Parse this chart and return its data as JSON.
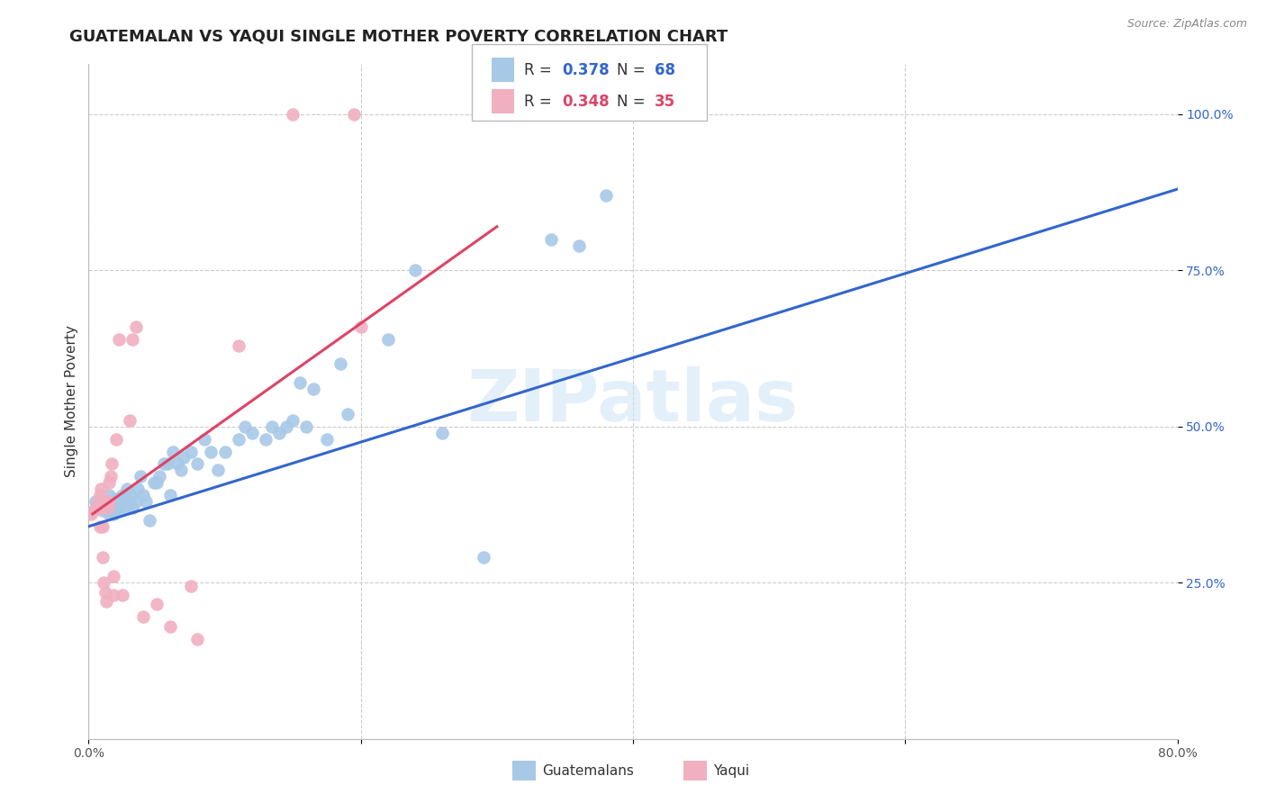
{
  "title": "GUATEMALAN VS YAQUI SINGLE MOTHER POVERTY CORRELATION CHART",
  "source": "Source: ZipAtlas.com",
  "ylabel": "Single Mother Poverty",
  "xlim": [
    0.0,
    0.8
  ],
  "ylim": [
    0.0,
    1.08
  ],
  "ytick_positions": [
    0.25,
    0.5,
    0.75,
    1.0
  ],
  "ytick_labels": [
    "25.0%",
    "50.0%",
    "75.0%",
    "100.0%"
  ],
  "background_color": "#ffffff",
  "grid_color": "#cccccc",
  "watermark": "ZIPatlas",
  "blue_R": 0.378,
  "blue_N": 68,
  "pink_R": 0.348,
  "pink_N": 35,
  "blue_color": "#a8c8e8",
  "pink_color": "#f0b0c0",
  "blue_line_color": "#3366cc",
  "pink_line_color": "#dd4466",
  "blue_scatter_x": [
    0.005,
    0.008,
    0.01,
    0.012,
    0.014,
    0.015,
    0.015,
    0.016,
    0.017,
    0.018,
    0.019,
    0.02,
    0.02,
    0.021,
    0.022,
    0.022,
    0.023,
    0.025,
    0.026,
    0.026,
    0.028,
    0.028,
    0.03,
    0.031,
    0.032,
    0.035,
    0.036,
    0.038,
    0.04,
    0.042,
    0.045,
    0.048,
    0.05,
    0.052,
    0.055,
    0.058,
    0.06,
    0.062,
    0.065,
    0.068,
    0.07,
    0.075,
    0.08,
    0.085,
    0.09,
    0.095,
    0.1,
    0.11,
    0.115,
    0.12,
    0.13,
    0.135,
    0.14,
    0.145,
    0.15,
    0.155,
    0.16,
    0.165,
    0.175,
    0.185,
    0.19,
    0.22,
    0.24,
    0.26,
    0.29,
    0.34,
    0.36,
    0.38
  ],
  "blue_scatter_y": [
    0.38,
    0.37,
    0.365,
    0.375,
    0.38,
    0.39,
    0.36,
    0.37,
    0.375,
    0.36,
    0.365,
    0.37,
    0.385,
    0.37,
    0.365,
    0.37,
    0.375,
    0.39,
    0.38,
    0.385,
    0.37,
    0.4,
    0.38,
    0.39,
    0.37,
    0.38,
    0.4,
    0.42,
    0.39,
    0.38,
    0.35,
    0.41,
    0.41,
    0.42,
    0.44,
    0.44,
    0.39,
    0.46,
    0.44,
    0.43,
    0.45,
    0.46,
    0.44,
    0.48,
    0.46,
    0.43,
    0.46,
    0.48,
    0.5,
    0.49,
    0.48,
    0.5,
    0.49,
    0.5,
    0.51,
    0.57,
    0.5,
    0.56,
    0.48,
    0.6,
    0.52,
    0.64,
    0.75,
    0.49,
    0.29,
    0.8,
    0.79,
    0.87
  ],
  "pink_scatter_x": [
    0.002,
    0.004,
    0.006,
    0.007,
    0.008,
    0.008,
    0.009,
    0.009,
    0.01,
    0.01,
    0.011,
    0.012,
    0.013,
    0.014,
    0.015,
    0.015,
    0.016,
    0.017,
    0.018,
    0.018,
    0.02,
    0.022,
    0.025,
    0.03,
    0.032,
    0.035,
    0.04,
    0.05,
    0.06,
    0.075,
    0.08,
    0.11,
    0.15,
    0.195,
    0.2
  ],
  "pink_scatter_y": [
    0.36,
    0.365,
    0.37,
    0.38,
    0.39,
    0.34,
    0.37,
    0.4,
    0.34,
    0.29,
    0.25,
    0.235,
    0.22,
    0.37,
    0.38,
    0.41,
    0.42,
    0.44,
    0.26,
    0.23,
    0.48,
    0.64,
    0.23,
    0.51,
    0.64,
    0.66,
    0.195,
    0.215,
    0.18,
    0.245,
    0.16,
    0.63,
    1.0,
    1.0,
    0.66
  ],
  "blue_line_x": [
    0.0,
    0.8
  ],
  "blue_line_y": [
    0.34,
    0.88
  ],
  "pink_line_x": [
    0.003,
    0.3
  ],
  "pink_line_y": [
    0.36,
    0.82
  ],
  "title_fontsize": 13,
  "axis_label_fontsize": 11,
  "tick_fontsize": 10,
  "legend_fontsize": 12
}
